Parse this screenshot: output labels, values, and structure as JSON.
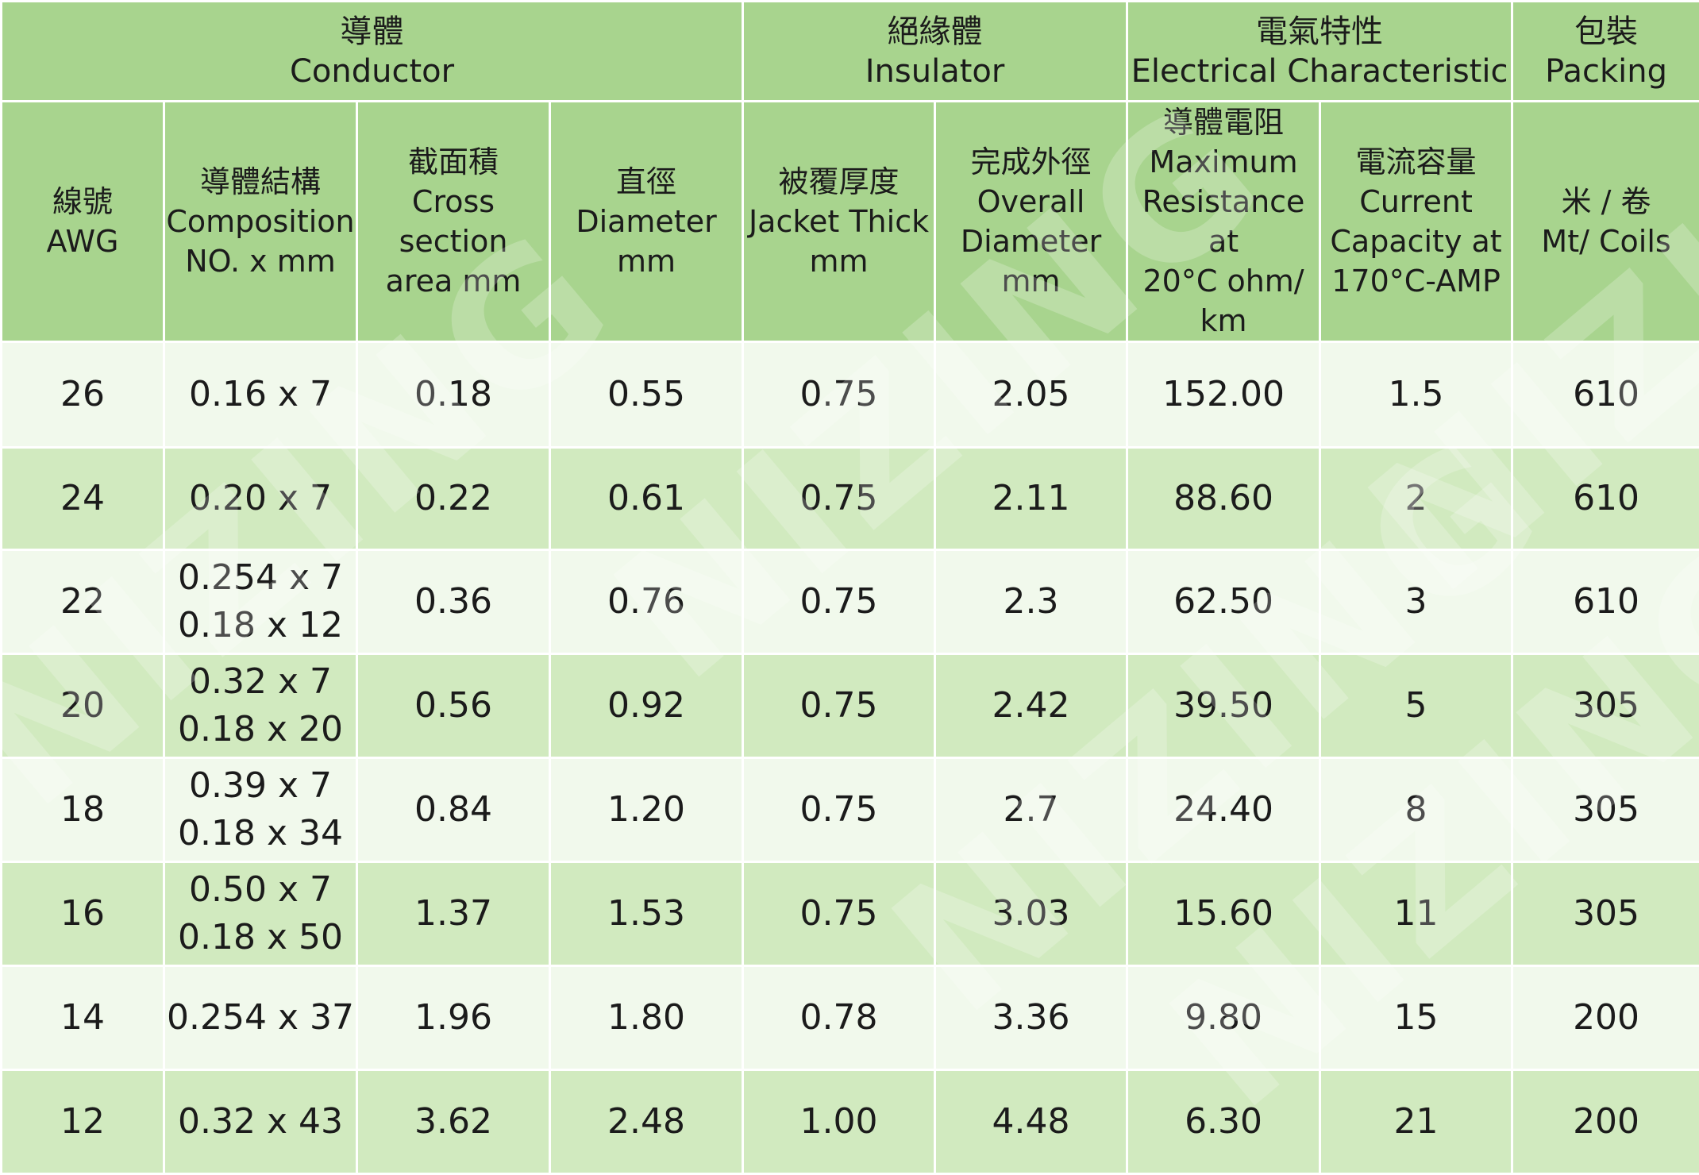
{
  "header": {
    "groups": [
      {
        "zh": "導體",
        "en": "Conductor"
      },
      {
        "zh": "絕緣體",
        "en": "Insulator"
      },
      {
        "zh": "電氣特性",
        "en": "Electrical Characteristic"
      },
      {
        "zh": "包裝",
        "en": "Packing"
      }
    ],
    "columns": [
      [
        "線號",
        "AWG"
      ],
      [
        "導體結構",
        "Composition",
        "NO. x mm"
      ],
      [
        "截面積",
        "Cross section",
        "area mm"
      ],
      [
        "直徑",
        "Diameter",
        "mm"
      ],
      [
        "被覆厚度",
        "Jacket Thick",
        "mm"
      ],
      [
        "完成外徑",
        "Overall",
        "Diameter",
        "mm"
      ],
      [
        "導體電阻",
        "Maximum",
        "Resistance at",
        "20°C ohm/",
        "km"
      ],
      [
        "電流容量",
        "Current",
        "Capacity at",
        "170°C-AMP"
      ],
      [
        "米 / 卷",
        "Mt/ Coils"
      ]
    ]
  },
  "rows": [
    {
      "awg": "26",
      "composition": [
        "0.16 x 7"
      ],
      "area": "0.18",
      "diameter": "0.55",
      "jacket": "0.75",
      "overall": "2.05",
      "resistance": "152.00",
      "current": "1.5",
      "packing": "610"
    },
    {
      "awg": "24",
      "composition": [
        "0.20 x 7"
      ],
      "area": "0.22",
      "diameter": "0.61",
      "jacket": "0.75",
      "overall": "2.11",
      "resistance": "88.60",
      "current": "2",
      "packing": "610"
    },
    {
      "awg": "22",
      "composition": [
        "0.254 x 7",
        "0.18 x 12"
      ],
      "area": "0.36",
      "diameter": "0.76",
      "jacket": "0.75",
      "overall": "2.3",
      "resistance": "62.50",
      "current": "3",
      "packing": "610"
    },
    {
      "awg": "20",
      "composition": [
        "0.32 x 7",
        "0.18 x 20"
      ],
      "area": "0.56",
      "diameter": "0.92",
      "jacket": "0.75",
      "overall": "2.42",
      "resistance": "39.50",
      "current": "5",
      "packing": "305"
    },
    {
      "awg": "18",
      "composition": [
        "0.39 x 7",
        "0.18 x 34"
      ],
      "area": "0.84",
      "diameter": "1.20",
      "jacket": "0.75",
      "overall": "2.7",
      "resistance": "24.40",
      "current": "8",
      "packing": "305"
    },
    {
      "awg": "16",
      "composition": [
        "0.50 x 7",
        "0.18 x 50"
      ],
      "area": "1.37",
      "diameter": "1.53",
      "jacket": "0.75",
      "overall": "3.03",
      "resistance": "15.60",
      "current": "11",
      "packing": "305"
    },
    {
      "awg": "14",
      "composition": [
        "0.254 x 37"
      ],
      "area": "1.96",
      "diameter": "1.80",
      "jacket": "0.78",
      "overall": "3.36",
      "resistance": "9.80",
      "current": "15",
      "packing": "200"
    },
    {
      "awg": "12",
      "composition": [
        "0.32 x 43"
      ],
      "area": "3.62",
      "diameter": "2.48",
      "jacket": "1.00",
      "overall": "4.48",
      "resistance": "6.30",
      "current": "21",
      "packing": "200"
    }
  ],
  "watermark": "NIZING",
  "colors": {
    "header": "#a8d48e",
    "row_light": "#f1f9ec",
    "row_dark": "#d1eabf",
    "grid": "#ffffff"
  }
}
